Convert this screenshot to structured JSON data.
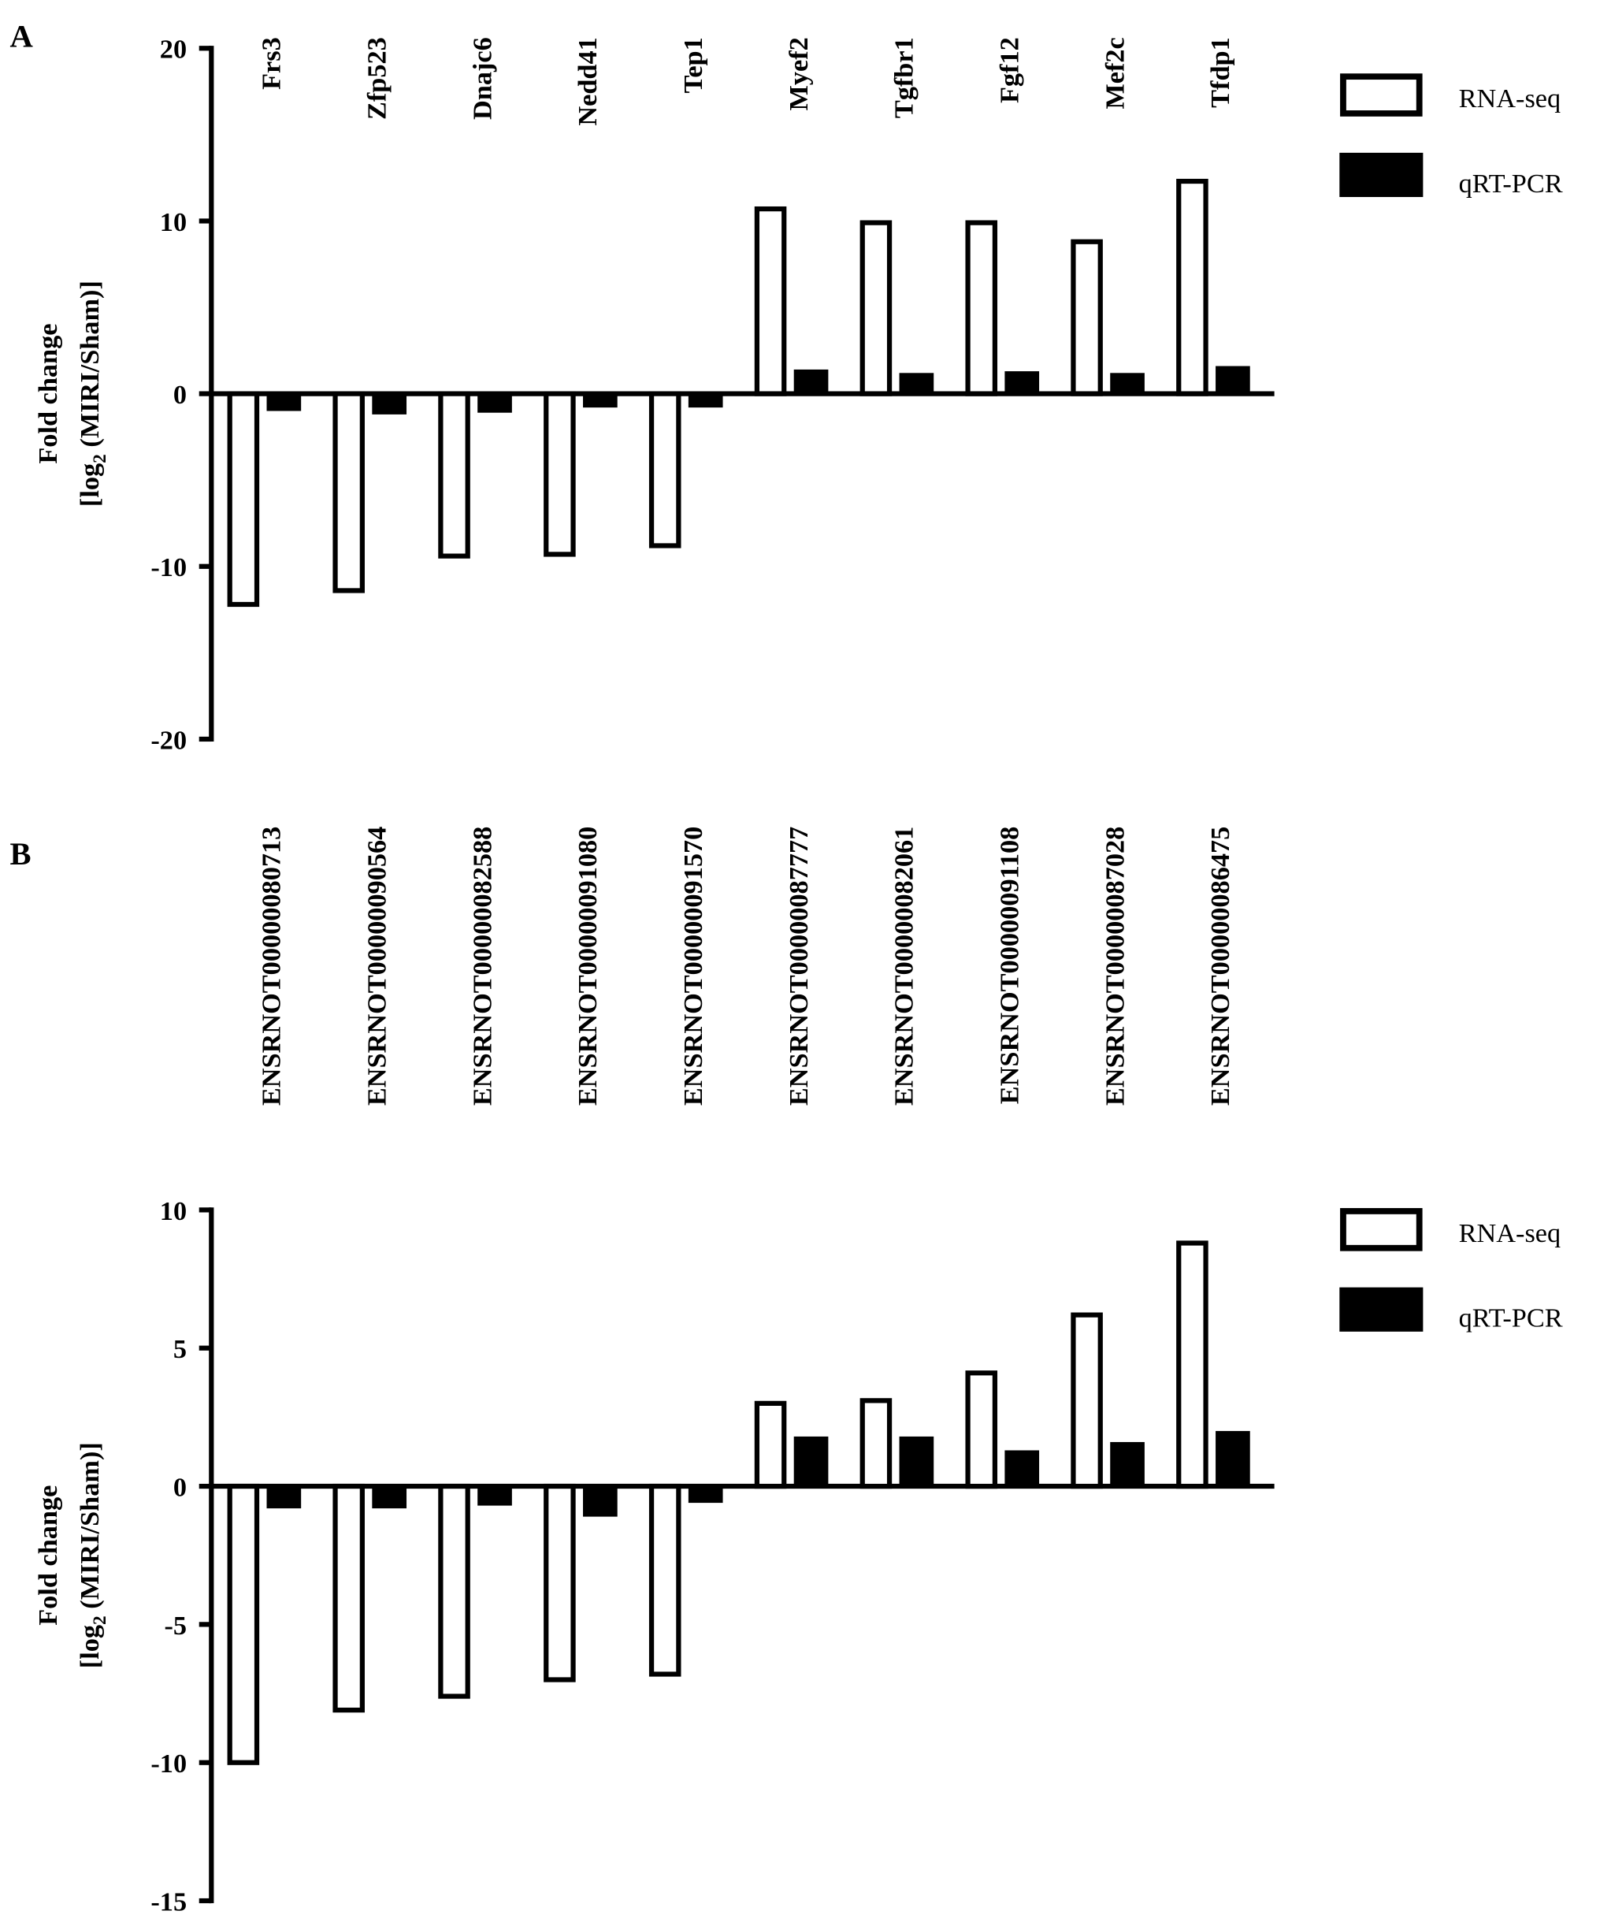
{
  "chart_data": [
    {
      "panel_label": "A",
      "type": "bar",
      "ylabel_line1": "Fold change",
      "ylabel_line2_pre": "[log",
      "ylabel_line2_sub": "2",
      "ylabel_line2_post": " (MIRI/Sham)]",
      "ylim": [
        -20,
        20
      ],
      "yticks": [
        "20",
        "10",
        "0",
        "-10",
        "-20"
      ],
      "ytick_values": [
        20,
        10,
        0,
        -10,
        -20
      ],
      "categories": [
        "Frs3",
        "Zfp523",
        "Dnajc6",
        "Nedd41",
        "Tep1",
        "Myef2",
        "Tgfbr1",
        "Fgf12",
        "Mef2c",
        "Tfdp1"
      ],
      "series": [
        {
          "name": "RNA-seq",
          "style": "open",
          "values": [
            -12.2,
            -11.4,
            -9.4,
            -9.3,
            -8.8,
            10.7,
            9.9,
            9.9,
            8.8,
            12.3
          ]
        },
        {
          "name": "qRT-PCR",
          "style": "filled",
          "values": [
            -1.0,
            -1.2,
            -1.1,
            -0.8,
            -0.8,
            1.4,
            1.2,
            1.3,
            1.2,
            1.6
          ]
        }
      ],
      "legend_position": "top-right",
      "grid": false
    },
    {
      "panel_label": "B",
      "type": "bar",
      "ylabel_line1": "Fold change",
      "ylabel_line2_pre": "[log",
      "ylabel_line2_sub": "2",
      "ylabel_line2_post": " (MIRI/Sham)]",
      "ylim": [
        -15,
        10
      ],
      "yticks": [
        "10",
        "5",
        "0",
        "-5",
        "-10",
        "-15"
      ],
      "ytick_values": [
        10,
        5,
        0,
        -5,
        -10,
        -15
      ],
      "categories": [
        "ENSRNOT00000080713",
        "ENSRNOT00000090564",
        "ENSRNOT00000082588",
        "ENSRNOT00000091080",
        "ENSRNOT00000091570",
        "ENSRNOT00000087777",
        "ENSRNOT00000082061",
        "ENSRNOT00000091108",
        "ENSRNOT00000087028",
        "ENSRNOT00000086475"
      ],
      "series": [
        {
          "name": "RNA-seq",
          "style": "open",
          "values": [
            -10.0,
            -8.1,
            -7.6,
            -7.0,
            -6.8,
            3.0,
            3.1,
            4.1,
            6.2,
            8.8
          ]
        },
        {
          "name": "qRT-PCR",
          "style": "filled",
          "values": [
            -0.8,
            -0.8,
            -0.7,
            -1.1,
            -0.6,
            1.8,
            1.8,
            1.3,
            1.6,
            2.0
          ]
        }
      ],
      "legend_position": "top-right",
      "grid": false
    }
  ]
}
